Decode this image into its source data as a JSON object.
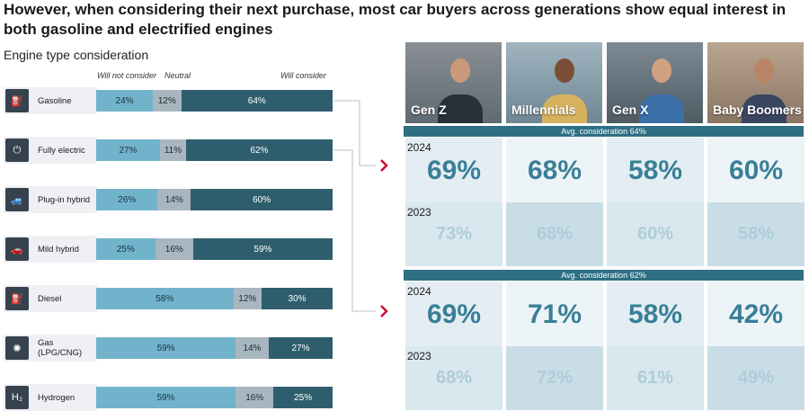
{
  "title": "However, when considering their next purchase, most car buyers across generations show equal interest in both gasoline and electrified engines",
  "subtitle": "Engine type consideration",
  "column_headers": {
    "no": "Will not consider",
    "neutral": "Neutral",
    "yes": "Will consider"
  },
  "colors": {
    "will_not": "#72b3cc",
    "neutral": "#a8b6bf",
    "will_consider": "#2e5e6e",
    "accent_arrow": "#c8102e",
    "avg_band": "#2e6f84"
  },
  "chart_data": [
    {
      "type": "bar",
      "orientation": "horizontal",
      "stacked": true,
      "title": "Engine type consideration",
      "categories": [
        "Gasoline",
        "Fully electric",
        "Plug-in hybrid",
        "Mild hybrid",
        "Diesel",
        "Gas (LPG/CNG)",
        "Hydrogen"
      ],
      "series": [
        {
          "name": "Will not consider",
          "values": [
            24,
            27,
            26,
            25,
            58,
            59,
            59
          ]
        },
        {
          "name": "Neutral",
          "values": [
            12,
            11,
            14,
            16,
            12,
            14,
            16
          ]
        },
        {
          "name": "Will consider",
          "values": [
            64,
            62,
            60,
            59,
            30,
            27,
            25
          ]
        }
      ],
      "unit": "%",
      "icons": [
        "fuel-pump-icon",
        "plug-icon",
        "car-plug-icon",
        "car-icon",
        "fuel-pump-icon",
        "gas-fan-icon",
        "h2-icon"
      ],
      "icon_glyphs": [
        "⛽",
        "⏻",
        "🚙",
        "🚗",
        "⛽",
        "✺",
        "H₂"
      ]
    },
    {
      "type": "table",
      "generations": [
        "Gen Z",
        "Millennials",
        "Gen X",
        "Baby Boomers"
      ],
      "groups": [
        {
          "engine": "Gasoline",
          "avg_label": "Avg. consideration 64%",
          "rows": [
            {
              "year": "2024",
              "values": [
                "69%",
                "68%",
                "58%",
                "60%"
              ]
            },
            {
              "year": "2023",
              "values": [
                "73%",
                "68%",
                "60%",
                "58%"
              ]
            }
          ]
        },
        {
          "engine": "Fully electric",
          "avg_label": "Avg. consideration 62%",
          "rows": [
            {
              "year": "2024",
              "values": [
                "69%",
                "71%",
                "58%",
                "42%"
              ]
            },
            {
              "year": "2023",
              "values": [
                "68%",
                "72%",
                "61%",
                "49%"
              ]
            }
          ]
        }
      ]
    }
  ]
}
